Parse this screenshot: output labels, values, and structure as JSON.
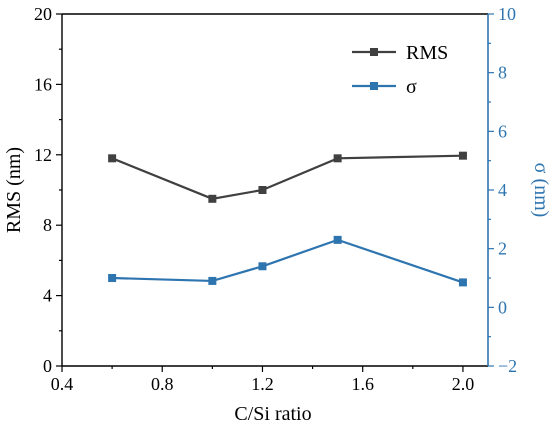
{
  "chart_data": {
    "type": "line",
    "title": "",
    "xlabel": "C/Si ratio",
    "ylabel": "RMS (nm)",
    "y2label": "σ (nm)",
    "xlim": [
      0.4,
      2.1
    ],
    "ylim": [
      0,
      20
    ],
    "y2lim": [
      -2,
      10
    ],
    "xticks": [
      0.4,
      0.8,
      1.2,
      1.6,
      2.0
    ],
    "xtick_labels": [
      "0.4",
      "0.8",
      "1.2",
      "1.6",
      "2.0"
    ],
    "yticks": [
      0,
      4,
      8,
      12,
      16,
      20
    ],
    "ytick_labels": [
      "0",
      "4",
      "8",
      "12",
      "16",
      "20"
    ],
    "y2ticks": [
      -2,
      0,
      2,
      4,
      6,
      8,
      10
    ],
    "y2tick_labels": [
      "−2",
      "0",
      "2",
      "4",
      "6",
      "8",
      "10"
    ],
    "x": [
      0.6,
      1.0,
      1.2,
      1.5,
      2.0
    ],
    "grid": false,
    "legend_position": "top-right",
    "series": [
      {
        "name": "RMS",
        "axis": "left",
        "color": "#404040",
        "marker": "square",
        "values": [
          11.8,
          9.5,
          10.0,
          11.8,
          11.95
        ]
      },
      {
        "name": "σ",
        "axis": "right",
        "color": "#2e75b0",
        "marker": "square",
        "values": [
          1.0,
          0.9,
          1.4,
          2.3,
          0.85
        ]
      }
    ],
    "axis_colors": {
      "left": "#000000",
      "right": "#2e75b0"
    }
  }
}
